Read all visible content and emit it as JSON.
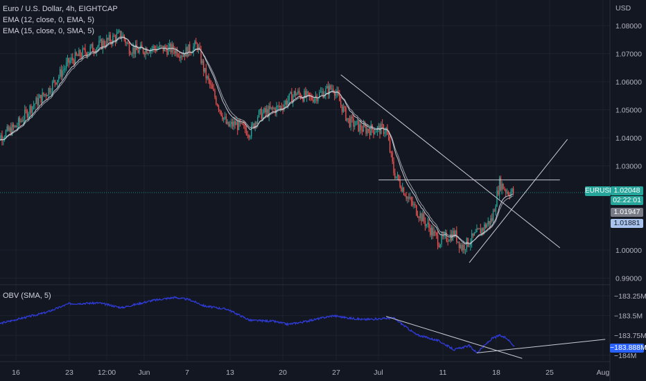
{
  "header": {
    "title": "Euro / U.S. Dollar, 4h, EIGHTCAP",
    "ema12": "EMA (12, close, 0, EMA, 5)",
    "ema15": "EMA (15, close, 0, SMA, 5)"
  },
  "price_axis": {
    "currency": "USD",
    "ticks": [
      "1.08000",
      "1.07000",
      "1.06000",
      "1.05000",
      "1.04000",
      "1.03000",
      "1.00000",
      "0.99000"
    ]
  },
  "badges": {
    "symbol": "EURUSD",
    "last_price": "1.02048",
    "countdown": "02:22:01",
    "ema12_value": "1.01947",
    "ema15_value": "1.01881",
    "obv_value": "−183.888M"
  },
  "obv": {
    "label": "OBV (SMA, 5)",
    "ticks": [
      "−183.25M",
      "−183.5M",
      "−183.75M",
      "−184M"
    ]
  },
  "time_axis": {
    "labels": [
      "16",
      "23",
      "12:00",
      "Jun",
      "7",
      "13",
      "20",
      "27",
      "Jul",
      "11",
      "18",
      "25",
      "Aug"
    ]
  },
  "colors": {
    "background": "#131722",
    "grid": "#1e222d",
    "up": "#26a69a",
    "down": "#ef5350",
    "ema": "#c9ccd3",
    "obv": "#2f3bd8",
    "trendline": "#c9ccd3",
    "accent_blue": "#2962ff"
  },
  "chart_data": [
    {
      "type": "candlestick",
      "title": "Euro / U.S. Dollar, 4h, EIGHTCAP",
      "ylabel": "USD",
      "ylim": [
        0.9865,
        1.0875
      ],
      "x": [
        "May 16",
        "May 23",
        "Jun",
        "Jun 7",
        "Jun 13",
        "Jun 20",
        "Jun 27",
        "Jul",
        "Jul 11",
        "Jul 18",
        "Jul 25",
        "Aug"
      ],
      "close_path": [
        [
          "May 13",
          1.039
        ],
        [
          "May 16",
          1.044
        ],
        [
          "May 18",
          1.051
        ],
        [
          "May 20",
          1.056
        ],
        [
          "May 23",
          1.067
        ],
        [
          "May 25",
          1.0705
        ],
        [
          "May 27",
          1.073
        ],
        [
          "May 30",
          1.077
        ],
        [
          "May 31",
          1.072
        ],
        [
          "Jun",
          1.071
        ],
        [
          "Jun 3",
          1.072
        ],
        [
          "Jun 6",
          1.0715
        ],
        [
          "Jun 7",
          1.07
        ],
        [
          "Jun 9",
          1.073
        ],
        [
          "Jun 10",
          1.063
        ],
        [
          "Jun 13",
          1.044
        ],
        [
          "Jun 14",
          1.045
        ],
        [
          "Jun 16",
          1.042
        ],
        [
          "Jun 17",
          1.048
        ],
        [
          "Jun 20",
          1.051
        ],
        [
          "Jun 22",
          1.056
        ],
        [
          "Jun 24",
          1.054
        ],
        [
          "Jun 27",
          1.058
        ],
        [
          "Jun 29",
          1.046
        ],
        [
          "Jul",
          1.043
        ],
        [
          "Jul 4",
          1.043
        ],
        [
          "Jul 5",
          1.028
        ],
        [
          "Jul 7",
          1.018
        ],
        [
          "Jul 11",
          1.003
        ],
        [
          "Jul 13",
          1.006
        ],
        [
          "Jul 14",
          1.001
        ],
        [
          "Jul 15",
          1.003
        ],
        [
          "Jul 18",
          1.011
        ],
        [
          "Jul 19",
          1.024
        ],
        [
          "Jul 20",
          1.021
        ],
        [
          "Jul 21",
          1.0205
        ]
      ],
      "last_price": 1.02048,
      "ema_12": 1.01947,
      "ema_15": 1.01881,
      "horizontal_line": 1.025,
      "trendlines": [
        {
          "from": [
            "Jun 28",
            1.0625
          ],
          "to": [
            "Jul 27",
            1.0008
          ]
        },
        {
          "from": [
            "Jul 15",
            0.9955
          ],
          "to": [
            "Jul 28",
            1.0395
          ]
        }
      ]
    },
    {
      "type": "line",
      "title": "OBV (SMA, 5)",
      "ylim": [
        -184.05,
        -183.2
      ],
      "unit": "M",
      "path": [
        [
          "May 13",
          -183.62
        ],
        [
          "May 16",
          -183.55
        ],
        [
          "May 20",
          -183.46
        ],
        [
          "May 23",
          -183.35
        ],
        [
          "May 27",
          -183.34
        ],
        [
          "May 30",
          -183.4
        ],
        [
          "Jun 3",
          -183.31
        ],
        [
          "Jun 6",
          -183.27
        ],
        [
          "Jun 8",
          -183.3
        ],
        [
          "Jun 10",
          -183.38
        ],
        [
          "Jun 13",
          -183.42
        ],
        [
          "Jun 16",
          -183.56
        ],
        [
          "Jun 19",
          -183.57
        ],
        [
          "Jun 21",
          -183.61
        ],
        [
          "Jun 23",
          -183.58
        ],
        [
          "Jun 27",
          -183.5
        ],
        [
          "Jun 29",
          -183.53
        ],
        [
          "Jul",
          -183.55
        ],
        [
          "Jul 5",
          -183.53
        ],
        [
          "Jul 8",
          -183.74
        ],
        [
          "Jul 11",
          -183.82
        ],
        [
          "Jul 13",
          -183.93
        ],
        [
          "Jul 15",
          -183.88
        ],
        [
          "Jul 16",
          -183.97
        ],
        [
          "Jul 18",
          -183.79
        ],
        [
          "Jul 19",
          -183.75
        ],
        [
          "Jul 20",
          -183.79
        ],
        [
          "Jul 21",
          -183.888
        ]
      ],
      "trendlines": [
        {
          "from": [
            "Jul 4",
            -183.51
          ],
          "to": [
            "Jul 22",
            -184.04
          ]
        },
        {
          "from": [
            "Jul 16",
            -183.97
          ],
          "to": [
            "Aug 2",
            -183.8
          ]
        }
      ]
    }
  ]
}
